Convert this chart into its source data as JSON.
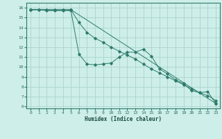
{
  "xlabel": "Humidex (Indice chaleur)",
  "bg_color": "#cdeee9",
  "grid_color": "#aad4cc",
  "line_color": "#2d7a6a",
  "xlim": [
    -0.5,
    23.5
  ],
  "ylim": [
    5.8,
    16.5
  ],
  "xticks": [
    0,
    1,
    2,
    3,
    4,
    5,
    6,
    7,
    8,
    9,
    10,
    11,
    12,
    13,
    14,
    15,
    16,
    17,
    18,
    19,
    20,
    21,
    22,
    23
  ],
  "yticks": [
    6,
    7,
    8,
    9,
    10,
    11,
    12,
    13,
    14,
    15,
    16
  ],
  "line1_x": [
    0,
    1,
    2,
    3,
    4,
    5,
    6,
    7,
    8,
    9,
    10,
    11,
    12,
    13,
    14,
    15,
    16,
    17,
    18,
    19,
    20,
    21,
    22,
    23
  ],
  "line1_y": [
    15.8,
    15.8,
    15.7,
    15.7,
    15.7,
    15.7,
    11.3,
    10.3,
    10.2,
    10.3,
    10.4,
    11.0,
    11.5,
    11.5,
    11.8,
    11.1,
    9.8,
    9.3,
    8.7,
    8.3,
    7.6,
    7.4,
    7.5,
    6.3
  ],
  "line2_x": [
    0,
    1,
    2,
    3,
    4,
    5,
    23
  ],
  "line2_y": [
    15.8,
    15.8,
    15.8,
    15.8,
    15.8,
    15.8,
    6.3
  ],
  "line3_x": [
    0,
    5,
    6,
    7,
    8,
    9,
    10,
    11,
    12,
    13,
    14,
    15,
    16,
    17,
    18,
    19,
    20,
    21,
    22,
    23
  ],
  "line3_y": [
    15.8,
    15.8,
    14.5,
    13.5,
    12.9,
    12.5,
    12.0,
    11.6,
    11.2,
    10.8,
    10.3,
    9.8,
    9.4,
    9.0,
    8.6,
    8.2,
    7.8,
    7.4,
    7.1,
    6.6
  ]
}
